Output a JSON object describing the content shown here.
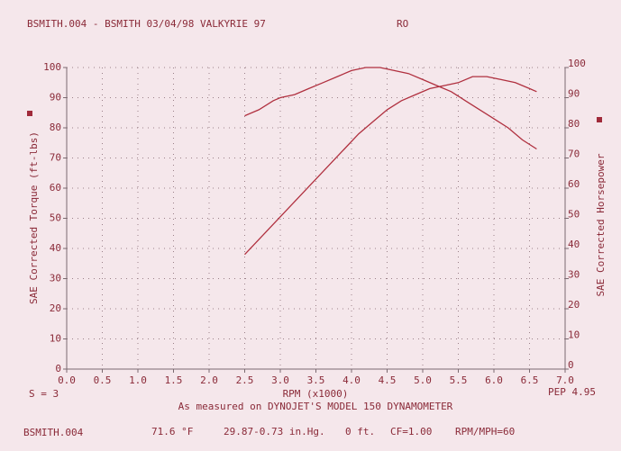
{
  "chart_data": {
    "type": "line",
    "title": "BSMITH.004 - BSMITH 03/04/98 VALKYRIE 97",
    "subtitle": "RO",
    "xlabel": "RPM (x1000)",
    "ylabel": "SAE Corrected Torque (ft-lbs)",
    "y2label": "SAE Corrected Horsepower",
    "notes": [
      "S = 3",
      "PEP 4.95",
      "As measured on DYNOJET'S MODEL 150 DYNAMOMETER"
    ],
    "footer": [
      "BSMITH.004",
      "71.6 °F",
      "29.87-0.73 in.Hg.",
      "0 ft.",
      "CF=1.00",
      "RPM/MPH=60"
    ],
    "xlim": [
      0,
      7
    ],
    "xticks": [
      {
        "value": 0,
        "label": "0.0"
      },
      0.5,
      {
        "value": 1,
        "label": "1.0"
      },
      1.5,
      {
        "value": 2,
        "label": "2.0"
      },
      2.5,
      {
        "value": 3,
        "label": "3.0"
      },
      3.5,
      {
        "value": 4,
        "label": "4.0"
      },
      4.5,
      {
        "value": 5,
        "label": "5.0"
      },
      5.5,
      {
        "value": 6,
        "label": "6.0"
      },
      6.5,
      {
        "value": 7,
        "label": "7.0"
      }
    ],
    "ylim": [
      0,
      100
    ],
    "yticks": [
      0,
      10,
      20,
      30,
      40,
      50,
      60,
      70,
      80,
      90,
      100
    ],
    "y2lim": [
      0,
      100
    ],
    "y2ticks": [
      0,
      10,
      20,
      30,
      40,
      50,
      60,
      70,
      80,
      90,
      100
    ],
    "grid": true,
    "series": [
      {
        "color": "#b0303f",
        "x": [
          2.5,
          2.7,
          2.9,
          3.0,
          3.2,
          3.4,
          3.6,
          3.8,
          4.0,
          4.2,
          4.4,
          4.6,
          4.8,
          5.0,
          5.2,
          5.4,
          5.6,
          5.8,
          6.0,
          6.2,
          6.4,
          6.6
        ],
        "values": [
          84,
          86,
          89,
          90,
          91,
          93,
          95,
          97,
          99,
          100,
          100,
          99,
          98,
          96,
          94,
          92,
          89,
          86,
          83,
          80,
          76,
          73
        ]
      },
      {
        "color": "#b0303f",
        "axis": "y2",
        "x": [
          2.5,
          2.7,
          2.9,
          3.1,
          3.3,
          3.5,
          3.7,
          3.9,
          4.1,
          4.3,
          4.5,
          4.7,
          4.9,
          5.1,
          5.3,
          5.5,
          5.7,
          5.9,
          6.1,
          6.3,
          6.5,
          6.6
        ],
        "values": [
          38,
          43,
          48,
          53,
          58,
          63,
          68,
          73,
          78,
          82,
          86,
          89,
          91,
          93,
          94,
          95,
          97,
          97,
          96,
          95,
          93,
          92
        ]
      }
    ]
  }
}
